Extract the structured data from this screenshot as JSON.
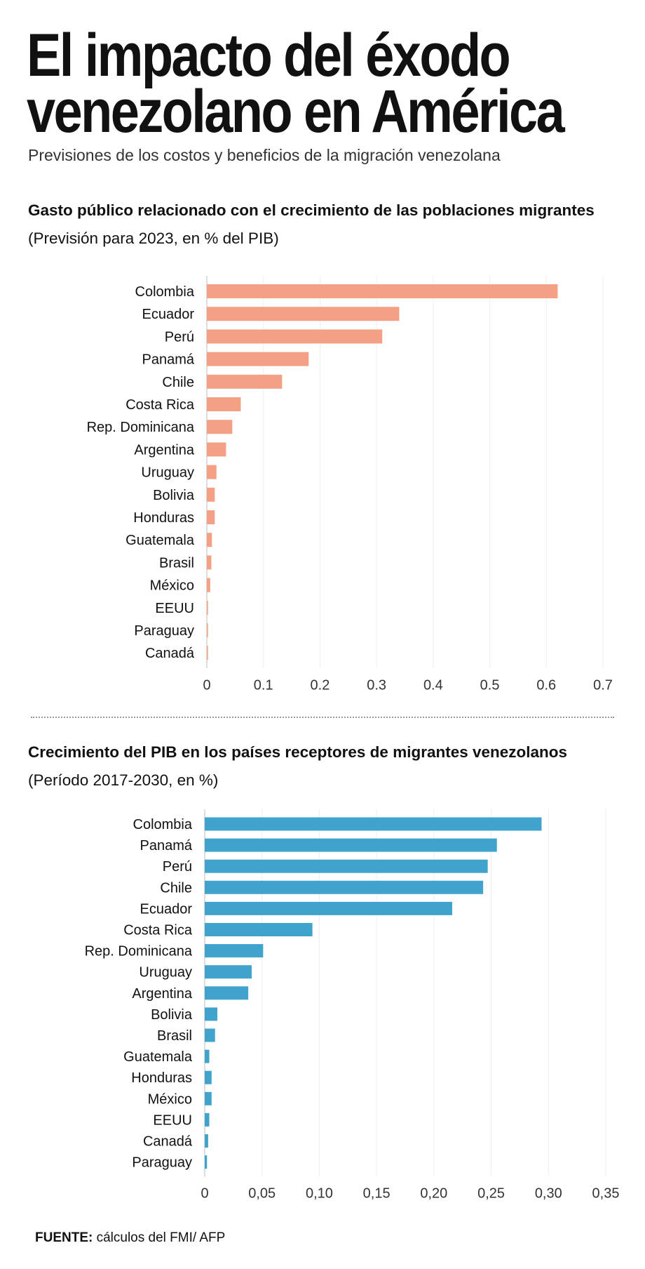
{
  "header": {
    "title_line1": "El impacto del éxodo",
    "title_line2": "venezolano en América",
    "subtitle": "Previsiones de los costos y beneficios de la migración venezolana"
  },
  "source": {
    "label": "FUENTE:",
    "text": " cálculos del FMI/ AFP"
  },
  "chart_data": [
    {
      "type": "bar",
      "orientation": "horizontal",
      "title_bold": "Gasto público relacionado con el crecimiento de las poblaciones migrantes",
      "title_normal": " (Previsión para 2023, en % del PIB)",
      "color": "#f4a084",
      "categories": [
        "Colombia",
        "Ecuador",
        "Perú",
        "Panamá",
        "Chile",
        "Costa Rica",
        "Rep. Dominicana",
        "Argentina",
        "Uruguay",
        "Bolivia",
        "Honduras",
        "Guatemala",
        "Brasil",
        "México",
        "EEUU",
        "Paraguay",
        "Canadá"
      ],
      "values": [
        0.62,
        0.34,
        0.31,
        0.18,
        0.133,
        0.06,
        0.045,
        0.034,
        0.017,
        0.014,
        0.014,
        0.009,
        0.008,
        0.006,
        0.002,
        0.002,
        0.002
      ],
      "xlim": [
        0,
        0.7
      ],
      "ticks": [
        "0",
        "0.1",
        "0.2",
        "0.3",
        "0.4",
        "0.5",
        "0.6",
        "0.7"
      ],
      "tick_values": [
        0,
        0.1,
        0.2,
        0.3,
        0.4,
        0.5,
        0.6,
        0.7
      ],
      "grid": true
    },
    {
      "type": "bar",
      "orientation": "horizontal",
      "title_bold": "Crecimiento del PIB en los países receptores de migrantes venezolanos",
      "title_normal": " (Período 2017-2030, en %)",
      "color": "#3fa3cc",
      "categories": [
        "Colombia",
        "Panamá",
        "Perú",
        "Chile",
        "Ecuador",
        "Costa Rica",
        "Rep. Dominicana",
        "Uruguay",
        "Argentina",
        "Bolivia",
        "Brasil",
        "Guatemala",
        "Honduras",
        "México",
        "EEUU",
        "Canadá",
        "Paraguay"
      ],
      "values": [
        0.294,
        0.255,
        0.247,
        0.243,
        0.216,
        0.094,
        0.051,
        0.041,
        0.038,
        0.011,
        0.009,
        0.004,
        0.006,
        0.006,
        0.004,
        0.003,
        0.002
      ],
      "xlim": [
        0,
        0.35
      ],
      "ticks": [
        "0",
        "0,05",
        "0,10",
        "0,15",
        "0,20",
        "0,25",
        "0,30",
        "0,35"
      ],
      "tick_values": [
        0,
        0.05,
        0.1,
        0.15,
        0.2,
        0.25,
        0.3,
        0.35
      ],
      "grid": true
    }
  ]
}
